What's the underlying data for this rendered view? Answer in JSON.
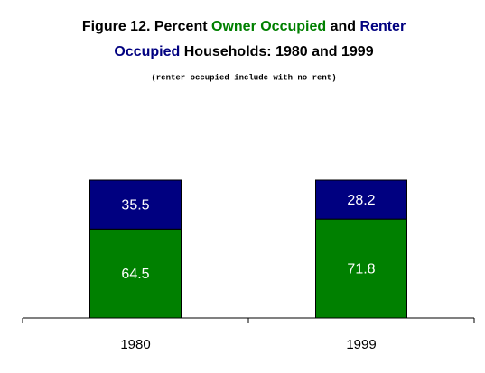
{
  "chart_data": {
    "type": "stacked_bar",
    "title": [
      "Figure 12.  Percent ",
      "Owner Occupied",
      " and ",
      "Renter",
      "Occupied",
      " Households: 1980 and 1999"
    ],
    "title_colors": [
      "#000000",
      "#008000",
      "#000000",
      "#000080",
      "#000080",
      "#000000"
    ],
    "subtitle": "(renter occupied include with no rent)",
    "categories": [
      "1980",
      "1999"
    ],
    "series": [
      {
        "color": "#008000",
        "values": [
          64.5,
          71.8
        ]
      },
      {
        "color": "#000080",
        "values": [
          35.5,
          28.2
        ]
      }
    ],
    "ylim": [
      0,
      100
    ]
  }
}
